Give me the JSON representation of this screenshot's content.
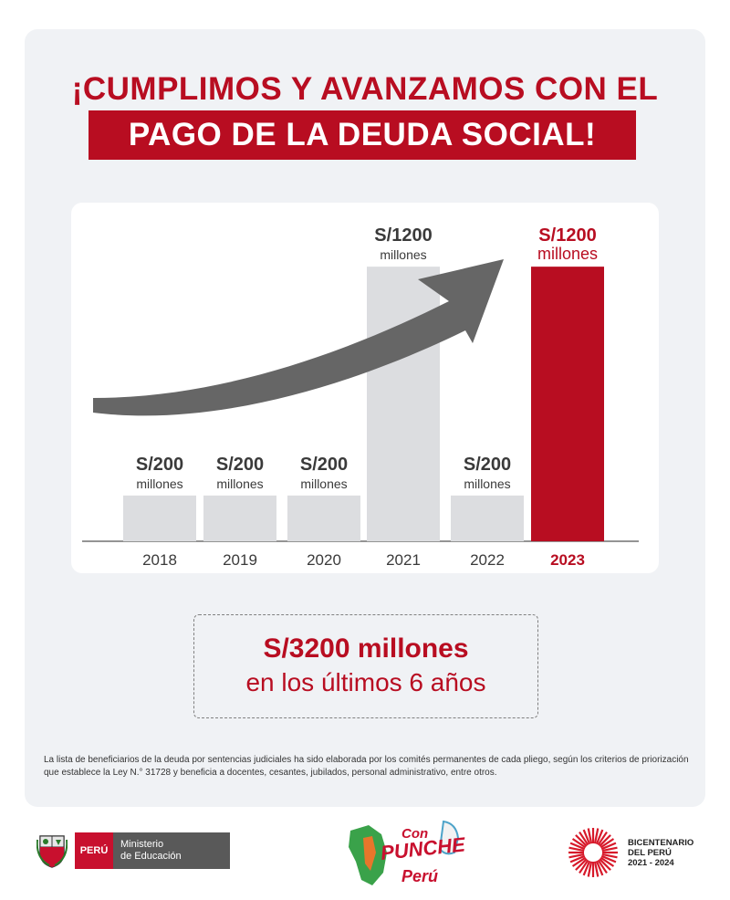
{
  "title": {
    "line1": "¡CUMPLIMOS Y AVANZAMOS CON EL",
    "line2": "PAGO DE LA DEUDA SOCIAL!"
  },
  "colors": {
    "accent_red": "#b80d21",
    "bar_gray": "#dcdde0",
    "label_gray": "#3a3a3a",
    "arrow_gray": "#666666"
  },
  "chart_data": {
    "type": "bar",
    "title": "",
    "xlabel": "",
    "ylabel": "",
    "ylim": [
      0,
      1400
    ],
    "categories": [
      "2018",
      "2019",
      "2020",
      "2021",
      "2022",
      "2023"
    ],
    "values": [
      200,
      200,
      200,
      1200,
      200,
      1200
    ],
    "value_labels": [
      "S/200",
      "S/200",
      "S/200",
      "S/1200",
      "S/200",
      "S/1200"
    ],
    "unit_label": "millones",
    "highlight_index": 5,
    "annotation": "growth-arrow"
  },
  "summary": {
    "amount": "S/3200 millones",
    "period": "en los últimos 6 años"
  },
  "footnote": "La lista de beneficiarios de la deuda por sentencias judiciales ha sido elaborada por los comités permanentes de cada pliego, según los criterios de priorización que establece la Ley N.° 31728 y beneficia a docentes, cesantes, jubilados, personal administrativo, entre otros.",
  "footer": {
    "peru": "PERÚ",
    "ministry_line1": "Ministerio",
    "ministry_line2": "de Educación",
    "campaign": {
      "line1": "Con",
      "line2": "PUNCHE",
      "line3": "Perú"
    },
    "bicentenario": {
      "line1": "BICENTENARIO",
      "line2": "DEL PERÚ",
      "line3": "2021 - 2024"
    }
  }
}
